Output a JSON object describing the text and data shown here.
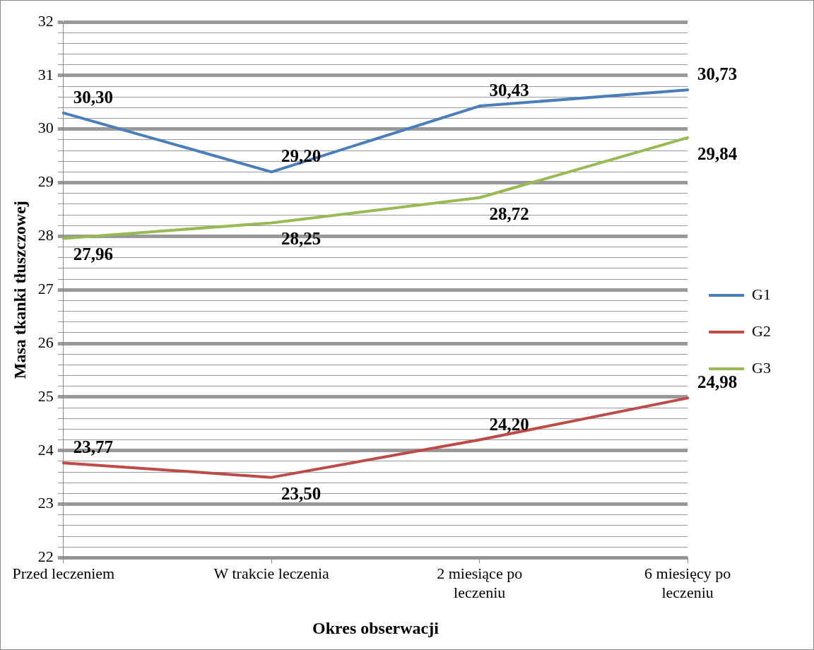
{
  "chart_data": {
    "type": "line",
    "xlabel": "Okres obserwacji",
    "ylabel": "Masa tkanki tłuszczowej",
    "categories": [
      "Przed leczeniem",
      "W trakcie leczenia",
      "2 miesiące po leczeniu",
      "6 miesięcy po leczeniu"
    ],
    "series": [
      {
        "name": "G1",
        "color": "#4a7ebb",
        "values": [
          30.3,
          29.2,
          30.43,
          30.73
        ],
        "value_labels": [
          "30,30",
          "29,20",
          "30,43",
          "30,73"
        ]
      },
      {
        "name": "G2",
        "color": "#be4b48",
        "values": [
          23.77,
          23.5,
          24.2,
          24.98
        ],
        "value_labels": [
          "23,77",
          "23,50",
          "24,20",
          "24,98"
        ]
      },
      {
        "name": "G3",
        "color": "#98b954",
        "values": [
          27.96,
          28.25,
          28.72,
          29.84
        ],
        "value_labels": [
          "27,96",
          "28,25",
          "28,72",
          "29,84"
        ]
      }
    ],
    "ylim": [
      22,
      32
    ],
    "yticks": [
      22,
      {
        "value": 22.2,
        "label": null
      },
      {
        "value": 22.4,
        "label": null
      },
      {
        "value": 22.6,
        "label": null
      },
      {
        "value": 22.8,
        "label": null
      },
      23,
      {
        "value": 23.2,
        "label": null
      },
      {
        "value": 23.4,
        "label": null
      },
      {
        "value": 23.6,
        "label": null
      },
      {
        "value": 23.8,
        "label": null
      },
      24,
      {
        "value": 24.2,
        "label": null
      },
      {
        "value": 24.4,
        "label": null
      },
      {
        "value": 24.6,
        "label": null
      },
      {
        "value": 24.8,
        "label": null
      },
      25,
      {
        "value": 25.2,
        "label": null
      },
      {
        "value": 25.4,
        "label": null
      },
      {
        "value": 25.6,
        "label": null
      },
      {
        "value": 25.8,
        "label": null
      },
      26,
      {
        "value": 26.2,
        "label": null
      },
      {
        "value": 26.4,
        "label": null
      },
      {
        "value": 26.6,
        "label": null
      },
      {
        "value": 26.8,
        "label": null
      },
      27,
      {
        "value": 27.2,
        "label": null
      },
      {
        "value": 27.4,
        "label": null
      },
      {
        "value": 27.6,
        "label": null
      },
      {
        "value": 27.8,
        "label": null
      },
      28,
      {
        "value": 28.2,
        "label": null
      },
      {
        "value": 28.4,
        "label": null
      },
      {
        "value": 28.6,
        "label": null
      },
      {
        "value": 28.8,
        "label": null
      },
      29,
      {
        "value": 29.2,
        "label": null
      },
      {
        "value": 29.4,
        "label": null
      },
      {
        "value": 29.6,
        "label": null
      },
      {
        "value": 29.8,
        "label": null
      },
      30,
      {
        "value": 30.2,
        "label": null
      },
      {
        "value": 30.4,
        "label": null
      },
      {
        "value": 30.6,
        "label": null
      },
      {
        "value": 30.8,
        "label": null
      },
      31,
      {
        "value": 31.2,
        "label": null
      },
      {
        "value": 31.4,
        "label": null
      },
      {
        "value": 31.6,
        "label": null
      },
      {
        "value": 31.8,
        "label": null
      },
      32
    ],
    "grid": true,
    "legend": "right",
    "marker": "none",
    "line_style": "solid"
  }
}
